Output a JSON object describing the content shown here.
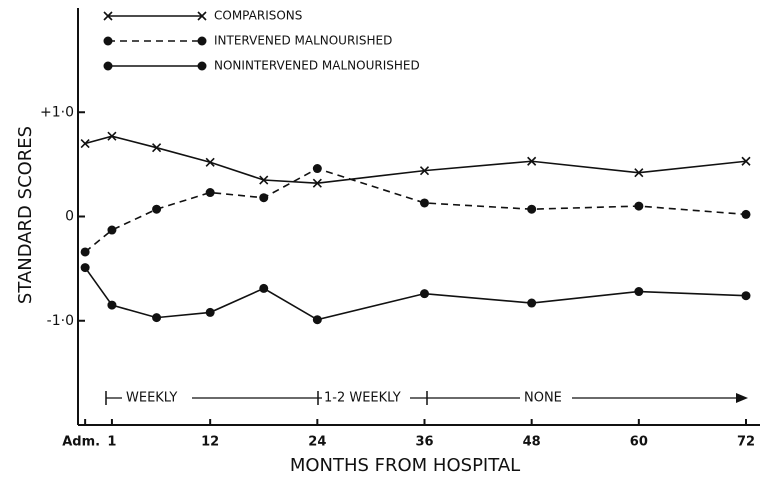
{
  "chart_data": {
    "type": "line",
    "xlabel": "MONTHS FROM HOSPITAL",
    "ylabel": "STANDARD SCORES",
    "x": [
      -2,
      1,
      6,
      12,
      18,
      24,
      36,
      48,
      60,
      72
    ],
    "xlim": [
      -2.5,
      73
    ],
    "xticks": [
      {
        "value": -2,
        "label": "Adm."
      },
      1,
      12,
      24,
      36,
      48,
      60,
      72
    ],
    "ylim": [
      -2,
      2
    ],
    "yticks": [
      {
        "value": -1,
        "label": "-1·0"
      },
      0,
      {
        "value": 1,
        "label": "+1·0"
      }
    ],
    "legend": "top",
    "series": [
      {
        "name": "COMPARISONS",
        "color": "#111111",
        "line": "solid",
        "marker": "x",
        "values": [
          0.7,
          0.77,
          0.66,
          0.52,
          0.35,
          0.32,
          0.44,
          0.53,
          0.42,
          0.53
        ]
      },
      {
        "name": "INTERVENED MALNOURISHED",
        "color": "#111111",
        "line": "dashed",
        "marker": "circle",
        "values": [
          -0.34,
          -0.13,
          0.07,
          0.23,
          0.18,
          0.46,
          0.13,
          0.07,
          0.1,
          0.02
        ]
      },
      {
        "name": "NONINTERVENED MALNOURISHED",
        "color": "#111111",
        "line": "solid",
        "marker": "circle",
        "values": [
          -0.49,
          -0.85,
          -0.97,
          -0.92,
          -0.69,
          -0.99,
          -0.74,
          -0.83,
          -0.72,
          -0.76
        ]
      }
    ],
    "annotations": [
      "WEEKLY",
      "1-2 WEEKLY",
      "NONE"
    ]
  }
}
